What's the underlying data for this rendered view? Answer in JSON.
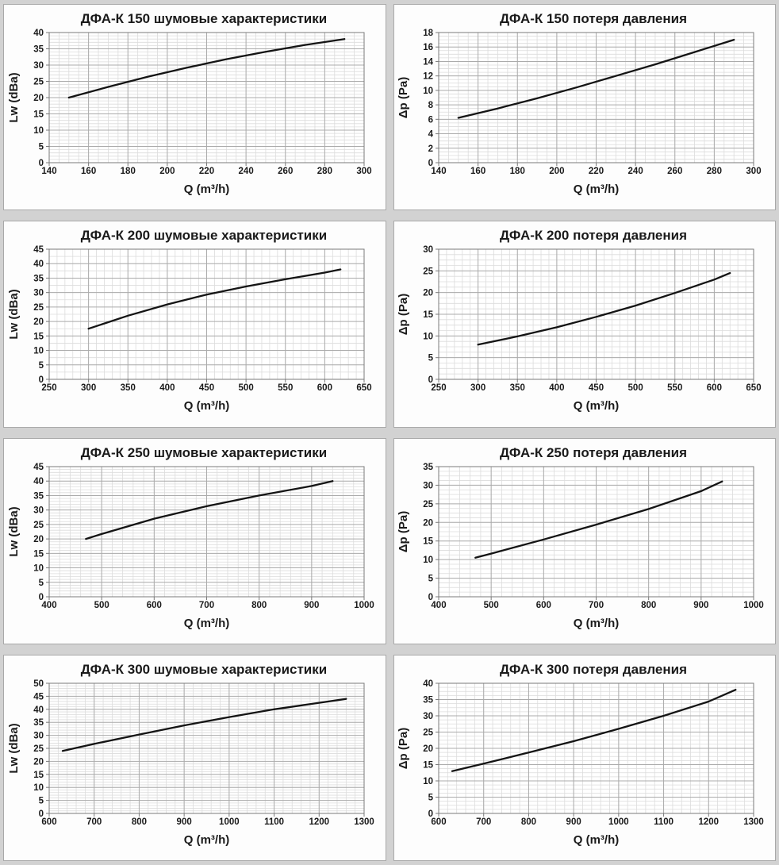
{
  "page": {
    "background": "#d2d2d2",
    "panel_background": "#fdfdfd",
    "panel_border": "#a9a9a9"
  },
  "styles": {
    "line_color": "#141414",
    "grid_minor_color": "#dcdcdc",
    "grid_major_color": "#ababab",
    "axis_color": "#7a7a7a",
    "text_color": "#1a1a1a"
  },
  "chart_data": [
    {
      "type": "line",
      "title": "ДФА-К 150 шумовые характеристики",
      "xlabel": "Q (m³/h)",
      "ylabel": "Lw (dBa)",
      "xlim": [
        140,
        300
      ],
      "ylim": [
        0,
        40
      ],
      "x_ticks": [
        140,
        160,
        180,
        200,
        220,
        240,
        260,
        280,
        300
      ],
      "y_ticks": [
        0,
        5,
        10,
        15,
        20,
        25,
        30,
        35,
        40
      ],
      "x_minor_step": 5,
      "y_minor_step": 1,
      "grid": true,
      "legend": false,
      "x": [
        150,
        170,
        190,
        210,
        230,
        250,
        270,
        290
      ],
      "y": [
        20,
        23.3,
        26.4,
        29.2,
        31.8,
        34.1,
        36.2,
        38
      ]
    },
    {
      "type": "line",
      "title": "ДФА-К 150 потеря давления",
      "xlabel": "Q (m³/h)",
      "ylabel": "Δp (Pa)",
      "xlim": [
        140,
        300
      ],
      "ylim": [
        0,
        18
      ],
      "x_ticks": [
        140,
        160,
        180,
        200,
        220,
        240,
        260,
        280,
        300
      ],
      "y_ticks": [
        0,
        2,
        4,
        6,
        8,
        10,
        12,
        14,
        16,
        18
      ],
      "x_minor_step": 5,
      "y_minor_step": 0.5,
      "grid": true,
      "legend": false,
      "x": [
        150,
        170,
        190,
        210,
        230,
        250,
        270,
        290
      ],
      "y": [
        6.2,
        7.5,
        8.9,
        10.4,
        12,
        13.6,
        15.3,
        17
      ]
    },
    {
      "type": "line",
      "title": "ДФА-К 200 шумовые характеристики",
      "xlabel": "Q (m³/h)",
      "ylabel": "Lw (dBa)",
      "xlim": [
        250,
        650
      ],
      "ylim": [
        0,
        45
      ],
      "x_ticks": [
        250,
        300,
        350,
        400,
        450,
        500,
        550,
        600,
        650
      ],
      "y_ticks": [
        0,
        5,
        10,
        15,
        20,
        25,
        30,
        35,
        40,
        45
      ],
      "x_minor_step": 10,
      "y_minor_step": 2.5,
      "grid": true,
      "legend": false,
      "x": [
        300,
        350,
        400,
        450,
        500,
        550,
        600,
        620
      ],
      "y": [
        17.5,
        22,
        25.9,
        29.3,
        32.1,
        34.6,
        36.9,
        38
      ]
    },
    {
      "type": "line",
      "title": "ДФА-К 200 потеря давления",
      "xlabel": "Q (m³/h)",
      "ylabel": "Δp (Pa)",
      "xlim": [
        250,
        650
      ],
      "ylim": [
        0,
        30
      ],
      "x_ticks": [
        250,
        300,
        350,
        400,
        450,
        500,
        550,
        600,
        650
      ],
      "y_ticks": [
        0,
        5,
        10,
        15,
        20,
        25,
        30
      ],
      "x_minor_step": 10,
      "y_minor_step": 1.25,
      "grid": true,
      "legend": false,
      "x": [
        300,
        350,
        400,
        450,
        500,
        550,
        600,
        620
      ],
      "y": [
        8,
        9.9,
        12,
        14.4,
        17,
        19.9,
        23,
        24.5
      ]
    },
    {
      "type": "line",
      "title": "ДФА-К 250 шумовые характеристики",
      "xlabel": "Q (m³/h)",
      "ylabel": "Lw (dBa)",
      "xlim": [
        400,
        1000
      ],
      "ylim": [
        0,
        45
      ],
      "x_ticks": [
        400,
        500,
        600,
        700,
        800,
        900,
        1000
      ],
      "y_ticks": [
        0,
        5,
        10,
        15,
        20,
        25,
        30,
        35,
        40,
        45
      ],
      "x_minor_step": 20,
      "y_minor_step": 1,
      "grid": true,
      "legend": false,
      "x": [
        470,
        500,
        600,
        700,
        800,
        900,
        940
      ],
      "y": [
        20,
        21.7,
        27,
        31.3,
        35,
        38.3,
        40
      ]
    },
    {
      "type": "line",
      "title": "ДФА-К 250 потеря давления",
      "xlabel": "Q (m³/h)",
      "ylabel": "Δp (Pa)",
      "xlim": [
        400,
        1000
      ],
      "ylim": [
        0,
        35
      ],
      "x_ticks": [
        400,
        500,
        600,
        700,
        800,
        900,
        1000
      ],
      "y_ticks": [
        0,
        5,
        10,
        15,
        20,
        25,
        30,
        35
      ],
      "x_minor_step": 20,
      "y_minor_step": 1.25,
      "grid": true,
      "legend": false,
      "x": [
        470,
        500,
        600,
        700,
        800,
        900,
        940
      ],
      "y": [
        10.5,
        11.6,
        15.4,
        19.4,
        23.6,
        28.4,
        31
      ]
    },
    {
      "type": "line",
      "title": "ДФА-К 300 шумовые характеристики",
      "xlabel": "Q (m³/h)",
      "ylabel": "Lw (dBa)",
      "xlim": [
        600,
        1300
      ],
      "ylim": [
        0,
        50
      ],
      "x_ticks": [
        600,
        700,
        800,
        900,
        1000,
        1100,
        1200,
        1300
      ],
      "y_ticks": [
        0,
        5,
        10,
        15,
        20,
        25,
        30,
        35,
        40,
        45,
        50
      ],
      "x_minor_step": 20,
      "y_minor_step": 1,
      "grid": true,
      "legend": false,
      "x": [
        630,
        700,
        800,
        900,
        1000,
        1100,
        1200,
        1260
      ],
      "y": [
        24,
        26.7,
        30.3,
        33.8,
        37,
        40,
        42.5,
        44
      ]
    },
    {
      "type": "line",
      "title": "ДФА-К 300 потеря давления",
      "xlabel": "Q (m³/h)",
      "ylabel": "Δp (Pa)",
      "xlim": [
        600,
        1300
      ],
      "ylim": [
        0,
        40
      ],
      "x_ticks": [
        600,
        700,
        800,
        900,
        1000,
        1100,
        1200,
        1300
      ],
      "y_ticks": [
        0,
        5,
        10,
        15,
        20,
        25,
        30,
        35,
        40
      ],
      "x_minor_step": 20,
      "y_minor_step": 1.25,
      "grid": true,
      "legend": false,
      "x": [
        630,
        700,
        800,
        900,
        1000,
        1100,
        1200,
        1260
      ],
      "y": [
        13,
        15.3,
        18.7,
        22.2,
        26,
        30,
        34.4,
        38
      ]
    }
  ]
}
